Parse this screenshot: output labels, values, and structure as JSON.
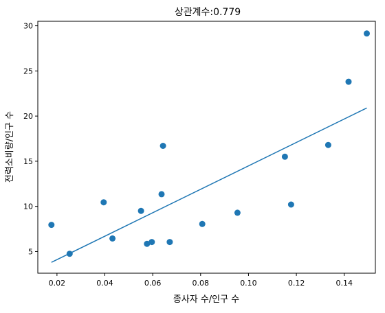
{
  "chart_data": {
    "type": "scatter",
    "title": "상관계수:0.779",
    "xlabel": "종사자 수/인구 수",
    "ylabel": "전력소비량/인구 수",
    "xlim": [
      0.012,
      0.153
    ],
    "ylim": [
      2.6,
      30.5
    ],
    "x_ticks": [
      0.02,
      0.04,
      0.06,
      0.08,
      0.1,
      0.12,
      0.14
    ],
    "x_tick_labels": [
      "0.02",
      "0.04",
      "0.06",
      "0.08",
      "0.10",
      "0.12",
      "0.14"
    ],
    "y_ticks": [
      5,
      10,
      15,
      20,
      25,
      30
    ],
    "y_tick_labels": [
      "5",
      "10",
      "15",
      "20",
      "25",
      "30"
    ],
    "grid": false,
    "colors": {
      "points": "#1f77b4",
      "line": "#1f77b4"
    },
    "series": [
      {
        "type": "scatter",
        "points": [
          {
            "x": 0.0177,
            "y": 7.95
          },
          {
            "x": 0.0253,
            "y": 4.75
          },
          {
            "x": 0.0395,
            "y": 10.45
          },
          {
            "x": 0.0432,
            "y": 6.45
          },
          {
            "x": 0.0551,
            "y": 9.5
          },
          {
            "x": 0.0576,
            "y": 5.85
          },
          {
            "x": 0.0596,
            "y": 6.05
          },
          {
            "x": 0.0637,
            "y": 11.35
          },
          {
            "x": 0.0643,
            "y": 16.7
          },
          {
            "x": 0.0671,
            "y": 6.05
          },
          {
            "x": 0.0807,
            "y": 8.05
          },
          {
            "x": 0.0954,
            "y": 9.3
          },
          {
            "x": 0.1152,
            "y": 15.5
          },
          {
            "x": 0.1178,
            "y": 10.2
          },
          {
            "x": 0.1333,
            "y": 16.8
          },
          {
            "x": 0.1418,
            "y": 23.8
          },
          {
            "x": 0.1494,
            "y": 29.15
          }
        ]
      },
      {
        "type": "line",
        "points": [
          {
            "x": 0.0177,
            "y": 3.8
          },
          {
            "x": 0.1494,
            "y": 20.9
          }
        ]
      }
    ]
  }
}
